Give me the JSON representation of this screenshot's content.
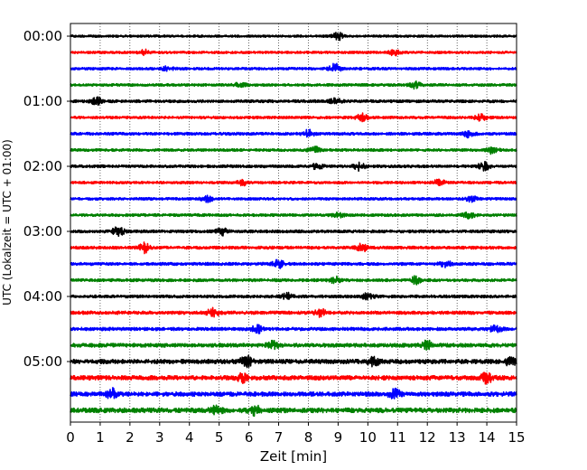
{
  "chart_data": {
    "type": "line",
    "chart_kind": "helicorder",
    "title": "",
    "xlabel": "Zeit  [min]",
    "ylabel": "UTC (Lokalzeit = UTC + 01:00)",
    "xlim": [
      0,
      15
    ],
    "x_ticks": [
      0,
      1,
      2,
      3,
      4,
      5,
      6,
      7,
      8,
      9,
      10,
      11,
      12,
      13,
      14,
      15
    ],
    "x_tick_labels": [
      "0",
      "1",
      "2",
      "3",
      "4",
      "5",
      "6",
      "7",
      "8",
      "9",
      "10",
      "11",
      "12",
      "13",
      "14",
      "15"
    ],
    "y_tick_labels": [
      {
        "label": "00:00",
        "trace_index": 0
      },
      {
        "label": "01:00",
        "trace_index": 4
      },
      {
        "label": "02:00",
        "trace_index": 8
      },
      {
        "label": "03:00",
        "trace_index": 12
      },
      {
        "label": "04:00",
        "trace_index": 16
      },
      {
        "label": "05:00",
        "trace_index": 20
      }
    ],
    "x_grid": "dotted vertical at each minute",
    "trace_minutes": 15,
    "trace_count": 24,
    "color_cycle": [
      "#000000",
      "#ff0000",
      "#0000ff",
      "#008000"
    ],
    "traces": [
      {
        "start": "00:00",
        "color": "#000000",
        "noise": 0.28,
        "events": [
          [
            9.0,
            0.9
          ]
        ]
      },
      {
        "start": "00:15",
        "color": "#ff0000",
        "noise": 0.3,
        "events": [
          [
            2.5,
            0.6
          ],
          [
            10.9,
            0.7
          ]
        ]
      },
      {
        "start": "00:30",
        "color": "#0000ff",
        "noise": 0.32,
        "events": [
          [
            8.9,
            1.2
          ],
          [
            3.3,
            0.6
          ]
        ]
      },
      {
        "start": "00:45",
        "color": "#008000",
        "noise": 0.32,
        "events": [
          [
            11.6,
            0.8
          ],
          [
            5.7,
            0.6
          ]
        ]
      },
      {
        "start": "01:00",
        "color": "#000000",
        "noise": 0.35,
        "events": [
          [
            0.9,
            1.0
          ],
          [
            8.9,
            0.7
          ]
        ]
      },
      {
        "start": "01:15",
        "color": "#ff0000",
        "noise": 0.32,
        "events": [
          [
            9.8,
            0.9
          ],
          [
            13.8,
            0.7
          ]
        ]
      },
      {
        "start": "01:30",
        "color": "#0000ff",
        "noise": 0.34,
        "events": [
          [
            8.0,
            0.9
          ],
          [
            13.4,
            0.8
          ]
        ]
      },
      {
        "start": "01:45",
        "color": "#008000",
        "noise": 0.32,
        "events": [
          [
            8.2,
            0.8
          ],
          [
            14.2,
            0.9
          ]
        ]
      },
      {
        "start": "02:00",
        "color": "#000000",
        "noise": 0.34,
        "events": [
          [
            9.7,
            1.0
          ],
          [
            13.9,
            1.1
          ],
          [
            8.3,
            0.8
          ]
        ]
      },
      {
        "start": "02:15",
        "color": "#ff0000",
        "noise": 0.32,
        "events": [
          [
            5.8,
            0.7
          ],
          [
            12.4,
            0.8
          ]
        ]
      },
      {
        "start": "02:30",
        "color": "#0000ff",
        "noise": 0.32,
        "events": [
          [
            4.6,
            0.7
          ],
          [
            13.5,
            0.7
          ]
        ]
      },
      {
        "start": "02:45",
        "color": "#008000",
        "noise": 0.34,
        "events": [
          [
            13.4,
            0.8
          ],
          [
            9.0,
            0.6
          ]
        ]
      },
      {
        "start": "03:00",
        "color": "#000000",
        "noise": 0.36,
        "events": [
          [
            1.6,
            1.2
          ],
          [
            5.1,
            0.9
          ]
        ]
      },
      {
        "start": "03:15",
        "color": "#ff0000",
        "noise": 0.36,
        "events": [
          [
            2.5,
            1.4
          ],
          [
            9.8,
            0.9
          ]
        ]
      },
      {
        "start": "03:30",
        "color": "#0000ff",
        "noise": 0.36,
        "events": [
          [
            7.0,
            1.0
          ],
          [
            12.6,
            0.9
          ]
        ]
      },
      {
        "start": "03:45",
        "color": "#008000",
        "noise": 0.36,
        "events": [
          [
            8.9,
            0.8
          ],
          [
            11.6,
            0.9
          ]
        ]
      },
      {
        "start": "04:00",
        "color": "#000000",
        "noise": 0.36,
        "events": [
          [
            7.3,
            0.8
          ],
          [
            10.0,
            0.8
          ]
        ]
      },
      {
        "start": "04:15",
        "color": "#ff0000",
        "noise": 0.4,
        "events": [
          [
            4.8,
            1.1
          ],
          [
            8.4,
            0.9
          ]
        ]
      },
      {
        "start": "04:30",
        "color": "#0000ff",
        "noise": 0.4,
        "events": [
          [
            6.3,
            1.0
          ],
          [
            14.3,
            0.9
          ]
        ]
      },
      {
        "start": "04:45",
        "color": "#008000",
        "noise": 0.48,
        "events": [
          [
            6.8,
            0.9
          ],
          [
            12.0,
            1.0
          ]
        ]
      },
      {
        "start": "05:00",
        "color": "#000000",
        "noise": 0.55,
        "events": [
          [
            5.9,
            1.5
          ],
          [
            10.2,
            1.0
          ],
          [
            14.8,
            1.1
          ]
        ]
      },
      {
        "start": "05:15",
        "color": "#ff0000",
        "noise": 0.55,
        "events": [
          [
            5.8,
            1.0
          ],
          [
            14.0,
            1.2
          ]
        ]
      },
      {
        "start": "05:30",
        "color": "#0000ff",
        "noise": 0.55,
        "events": [
          [
            1.4,
            1.2
          ],
          [
            10.9,
            1.3
          ]
        ]
      },
      {
        "start": "05:45",
        "color": "#008000",
        "noise": 0.6,
        "events": [
          [
            6.2,
            1.1
          ],
          [
            4.9,
            0.9
          ]
        ]
      }
    ]
  }
}
